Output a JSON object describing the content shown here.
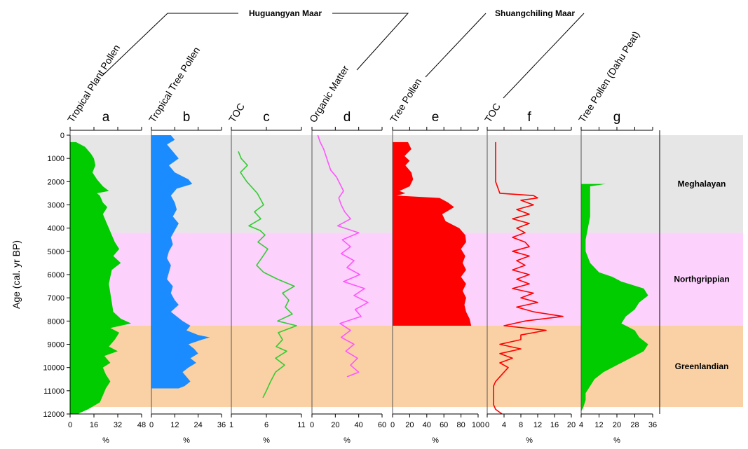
{
  "groups": [
    {
      "label": "Huguangyan Maar"
    },
    {
      "label": "Shuangchiling Maar"
    }
  ],
  "y_axis": {
    "title": "Age (cal. yr BP)",
    "ticks": [
      "0",
      "1000",
      "2000",
      "3000",
      "4000",
      "5000",
      "6000",
      "7000",
      "8000",
      "9000",
      "10000",
      "11000",
      "12000"
    ],
    "range": [
      0,
      12000
    ]
  },
  "zones": [
    {
      "name": "Meghalayan",
      "from": 0,
      "to": 4200,
      "color": "#e6e6e6"
    },
    {
      "name": "Northgrippian",
      "from": 4200,
      "to": 8200,
      "color": "#fcd2fc"
    },
    {
      "name": "Greenlandian",
      "from": 8200,
      "to": 11700,
      "color": "#fad1a5"
    }
  ],
  "chart_data": [
    {
      "type": "area",
      "letter": "a",
      "title": "Tropical Plant Pollen",
      "xlabel": "%",
      "xlim": [
        0,
        48
      ],
      "xticks": [
        "0",
        "16",
        "32",
        "48"
      ],
      "color": "#00cc00",
      "age": [
        300,
        500,
        800,
        1000,
        1300,
        1600,
        1900,
        2200,
        2400,
        2500,
        2600,
        2900,
        3100,
        3400,
        3700,
        4000,
        4300,
        4600,
        4900,
        5200,
        5500,
        5800,
        6100,
        6400,
        6800,
        7200,
        7600,
        7900,
        8100,
        8300,
        8500,
        8800,
        9100,
        9300,
        9500,
        9800,
        10000,
        10300,
        10600,
        10900,
        11200,
        11500,
        11800,
        12000
      ],
      "values": [
        4,
        10,
        14,
        16,
        17,
        15,
        18,
        22,
        26,
        18,
        20,
        22,
        25,
        22,
        24,
        26,
        28,
        30,
        33,
        29,
        34,
        28,
        27,
        26,
        27,
        28,
        29,
        34,
        41,
        27,
        33,
        30,
        26,
        32,
        23,
        27,
        22,
        24,
        27,
        24,
        22,
        20,
        12,
        5
      ]
    },
    {
      "type": "area",
      "letter": "b",
      "title": "Tropical Tree Pollen",
      "xlabel": "%",
      "xlim": [
        0,
        36
      ],
      "xticks": [
        "0",
        "12",
        "24",
        "36"
      ],
      "color": "#1a8cff",
      "age": [
        0,
        200,
        400,
        700,
        1000,
        1300,
        1600,
        1900,
        2100,
        2300,
        2600,
        2900,
        3200,
        3500,
        3800,
        4100,
        4400,
        4700,
        5000,
        5300,
        5600,
        5900,
        6200,
        6500,
        6800,
        7100,
        7300,
        7600,
        7800,
        8000,
        8200,
        8400,
        8600,
        8700,
        8800,
        9000,
        9200,
        9400,
        9600,
        9800,
        10000,
        10200,
        10400,
        10600,
        10800,
        10900
      ],
      "values": [
        10,
        12,
        8,
        11,
        14,
        9,
        12,
        19,
        21,
        13,
        10,
        12,
        13,
        11,
        14,
        12,
        10,
        11,
        9,
        8,
        10,
        9,
        8,
        11,
        10,
        12,
        14,
        10,
        13,
        16,
        20,
        18,
        24,
        30,
        26,
        19,
        22,
        24,
        20,
        23,
        19,
        16,
        18,
        20,
        17,
        14
      ]
    },
    {
      "type": "line",
      "letter": "c",
      "title": "TOC",
      "xlabel": "%",
      "xlim": [
        1,
        11
      ],
      "xticks": [
        "1",
        "6",
        "11"
      ],
      "color": "#33cc33",
      "age": [
        700,
        1000,
        1300,
        1600,
        2000,
        2500,
        3000,
        3300,
        3600,
        3900,
        4100,
        4300,
        4600,
        4900,
        5300,
        5600,
        5900,
        6200,
        6500,
        6800,
        7100,
        7400,
        7700,
        8000,
        8200,
        8500,
        8800,
        9100,
        9300,
        9600,
        9900,
        10200,
        10600,
        11000,
        11300
      ],
      "values": [
        2.0,
        2.4,
        3.3,
        2.3,
        3.2,
        4.7,
        5.6,
        4.3,
        5.2,
        3.5,
        5.1,
        5.8,
        4.8,
        6.2,
        5.3,
        4.6,
        5.6,
        7.6,
        10.0,
        8.3,
        9.2,
        8.7,
        9.7,
        7.6,
        10.3,
        7.7,
        8.3,
        7.4,
        8.9,
        7.3,
        8.6,
        7.3,
        6.6,
        6.0,
        5.5
      ]
    },
    {
      "type": "line",
      "letter": "d",
      "title": "Organic Matter",
      "xlabel": "%",
      "xlim": [
        0,
        60
      ],
      "xticks": [
        "0",
        "20",
        "40",
        "60"
      ],
      "color": "#ff55ff",
      "age": [
        0,
        300,
        600,
        900,
        1200,
        1500,
        1800,
        2100,
        2400,
        2700,
        3000,
        3300,
        3600,
        3900,
        4200,
        4500,
        4800,
        5100,
        5400,
        5700,
        6000,
        6300,
        6600,
        6900,
        7200,
        7500,
        7800,
        8100,
        8400,
        8700,
        9000,
        9300,
        9600,
        9900,
        10200,
        10400
      ],
      "values": [
        5,
        7,
        10,
        12,
        14,
        16,
        21,
        24,
        27,
        23,
        25,
        28,
        33,
        22,
        40,
        26,
        33,
        25,
        36,
        30,
        41,
        27,
        45,
        36,
        48,
        37,
        42,
        24,
        33,
        25,
        36,
        29,
        39,
        33,
        40,
        30
      ]
    },
    {
      "type": "area",
      "letter": "e",
      "title": "Tree Pollen",
      "xlabel": "%",
      "xlim": [
        0,
        100
      ],
      "xticks": [
        "0",
        "20",
        "40",
        "60",
        "80",
        "100"
      ],
      "color": "#ff0000",
      "age": [
        300,
        600,
        900,
        1100,
        1300,
        1600,
        1900,
        2200,
        2400,
        2500,
        2600,
        2700,
        2900,
        3100,
        3400,
        3700,
        4000,
        4300,
        4600,
        4900,
        5200,
        5500,
        5800,
        6100,
        6400,
        6700,
        7000,
        7300,
        7600,
        7900,
        8200
      ],
      "values": [
        18,
        22,
        14,
        20,
        15,
        22,
        24,
        20,
        8,
        15,
        5,
        55,
        65,
        72,
        58,
        62,
        78,
        85,
        86,
        80,
        85,
        82,
        86,
        80,
        86,
        82,
        86,
        84,
        86,
        90,
        92
      ]
    },
    {
      "type": "line",
      "letter": "f",
      "title": "TOC",
      "xlabel": "%",
      "xlim": [
        0,
        20
      ],
      "xticks": [
        "0",
        "4",
        "8",
        "12",
        "16",
        "20"
      ],
      "color": "#ff0000",
      "age": [
        300,
        600,
        1000,
        1500,
        2000,
        2500,
        2600,
        2700,
        2800,
        3000,
        3200,
        3400,
        3600,
        3800,
        4000,
        4200,
        4400,
        4600,
        4800,
        5000,
        5200,
        5400,
        5600,
        5800,
        6000,
        6200,
        6400,
        6600,
        6800,
        7000,
        7200,
        7400,
        7600,
        7800,
        8000,
        8200,
        8400,
        8600,
        8800,
        9000,
        9200,
        9400,
        9600,
        9800,
        10000,
        10200,
        10400,
        10600,
        10800,
        11000,
        11200,
        11400,
        11600,
        11800,
        12000
      ],
      "values": [
        2,
        2,
        2,
        2,
        2,
        3,
        11,
        12,
        8,
        11,
        7,
        10,
        6,
        10,
        7,
        9,
        6,
        9,
        10,
        6,
        10,
        7,
        9,
        6,
        10,
        7,
        10,
        6,
        11,
        8,
        12,
        7,
        11,
        18,
        9,
        4,
        14,
        8,
        8,
        3,
        8,
        3,
        6,
        3,
        5,
        4,
        3,
        2,
        1.5,
        1.5,
        1.5,
        1.5,
        1.5,
        2,
        3.5
      ]
    },
    {
      "type": "area",
      "letter": "g",
      "title": "Tree Pollen (Dahu Peat)",
      "xlabel": "%",
      "xlim": [
        4,
        36
      ],
      "xticks": [
        "4",
        "12",
        "20",
        "28",
        "36"
      ],
      "color": "#00cc00",
      "age": [
        2100,
        2200,
        2500,
        3000,
        3500,
        4000,
        4500,
        5000,
        5500,
        5900,
        6100,
        6300,
        6600,
        6900,
        7200,
        7500,
        7800,
        8100,
        8400,
        8700,
        9000,
        9300,
        9600,
        9900,
        10200,
        10500,
        10800,
        11100,
        11400,
        11700,
        11900
      ],
      "values": [
        15,
        8,
        8,
        8,
        8,
        7,
        6,
        6,
        8,
        12,
        18,
        22,
        32,
        34,
        30,
        28,
        24,
        22,
        28,
        30,
        34,
        32,
        26,
        20,
        14,
        10,
        8,
        6,
        6,
        5,
        4
      ]
    }
  ]
}
